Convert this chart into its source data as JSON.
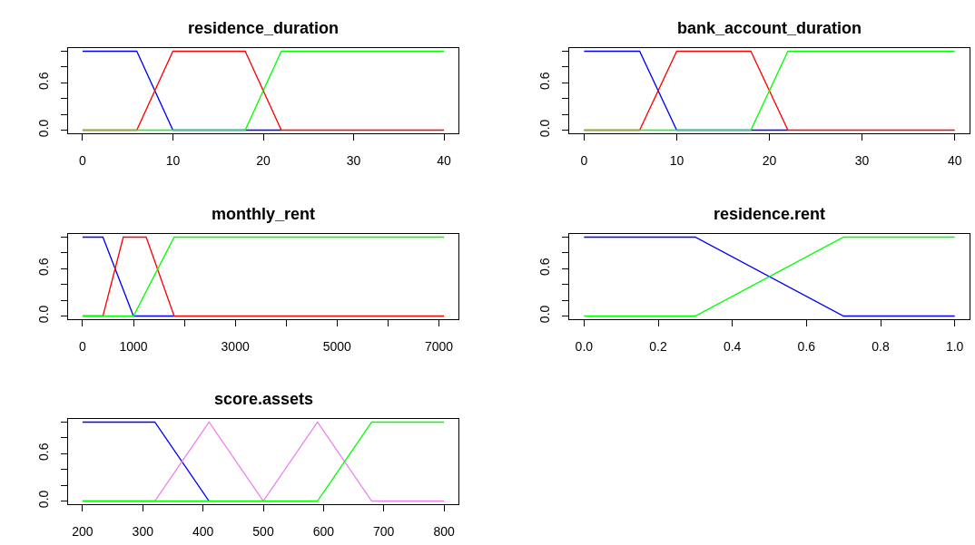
{
  "chart_data": [
    {
      "type": "line",
      "title": "residence_duration",
      "xlim": [
        -1.6,
        41.6
      ],
      "xticks": [
        0,
        10,
        20,
        30,
        40
      ],
      "ylim": [
        -0.04,
        1.04
      ],
      "yticks": [
        {
          "value": 0,
          "label": "0.0"
        },
        {
          "value": 0.2,
          "label": null
        },
        {
          "value": 0.4,
          "label": null
        },
        {
          "value": 0.6,
          "label": "0.6"
        },
        {
          "value": 0.8,
          "label": null
        },
        {
          "value": 1,
          "label": null
        }
      ],
      "series": [
        {
          "color": "#0000ff",
          "x": [
            0,
            6,
            10,
            22
          ],
          "values": [
            1,
            1,
            0,
            0
          ]
        },
        {
          "color": "#ff0000",
          "x": [
            0,
            6,
            10,
            18,
            22,
            40
          ],
          "values": [
            0,
            0,
            1,
            1,
            0,
            0
          ]
        },
        {
          "color": "#00ff00",
          "x": [
            0,
            18,
            22,
            40
          ],
          "values": [
            0,
            0,
            1,
            1
          ]
        }
      ]
    },
    {
      "type": "line",
      "title": "bank_account_duration",
      "xlim": [
        -1.6,
        41.6
      ],
      "xticks": [
        0,
        10,
        20,
        30,
        40
      ],
      "ylim": [
        -0.04,
        1.04
      ],
      "yticks": [
        {
          "value": 0,
          "label": "0.0"
        },
        {
          "value": 0.2,
          "label": null
        },
        {
          "value": 0.4,
          "label": null
        },
        {
          "value": 0.6,
          "label": "0.6"
        },
        {
          "value": 0.8,
          "label": null
        },
        {
          "value": 1,
          "label": null
        }
      ],
      "series": [
        {
          "color": "#0000ff",
          "x": [
            0,
            6,
            10,
            22
          ],
          "values": [
            1,
            1,
            0,
            0
          ]
        },
        {
          "color": "#ff0000",
          "x": [
            0,
            6,
            10,
            18,
            22,
            40
          ],
          "values": [
            0,
            0,
            1,
            1,
            0,
            0
          ]
        },
        {
          "color": "#00ff00",
          "x": [
            0,
            18,
            22,
            40
          ],
          "values": [
            0,
            0,
            1,
            1
          ]
        }
      ]
    },
    {
      "type": "line",
      "title": "monthly_rent",
      "xlim": [
        -284,
        7384
      ],
      "xticks": [
        0,
        1000,
        {
          "value": 2000,
          "label": null
        },
        3000,
        {
          "value": 4000,
          "label": null
        },
        5000,
        {
          "value": 6000,
          "label": null
        },
        7000
      ],
      "ylim": [
        -0.04,
        1.04
      ],
      "yticks": [
        {
          "value": 0,
          "label": "0.0"
        },
        {
          "value": 0.2,
          "label": null
        },
        {
          "value": 0.4,
          "label": null
        },
        {
          "value": 0.6,
          "label": "0.6"
        },
        {
          "value": 0.8,
          "label": null
        },
        {
          "value": 1,
          "label": null
        }
      ],
      "series": [
        {
          "color": "#0000ff",
          "x": [
            0,
            400,
            1000,
            1800
          ],
          "values": [
            1,
            1,
            0,
            0
          ]
        },
        {
          "color": "#ff0000",
          "x": [
            0,
            400,
            800,
            1250,
            1800,
            7100
          ],
          "values": [
            0,
            0,
            1,
            1,
            0,
            0
          ]
        },
        {
          "color": "#00ff00",
          "x": [
            0,
            1000,
            1800,
            7100
          ],
          "values": [
            0,
            0,
            1,
            1
          ]
        }
      ]
    },
    {
      "type": "line",
      "title": "residence.rent",
      "xlim": [
        -0.04,
        1.04
      ],
      "xticks": [
        {
          "value": 0,
          "label": "0.0"
        },
        0.2,
        0.4,
        0.6,
        0.8,
        {
          "value": 1,
          "label": "1.0"
        }
      ],
      "ylim": [
        -0.04,
        1.04
      ],
      "yticks": [
        {
          "value": 0,
          "label": "0.0"
        },
        {
          "value": 0.2,
          "label": null
        },
        {
          "value": 0.4,
          "label": null
        },
        {
          "value": 0.6,
          "label": "0.6"
        },
        {
          "value": 0.8,
          "label": null
        },
        {
          "value": 1,
          "label": null
        }
      ],
      "series": [
        {
          "color": "#0000ff",
          "x": [
            0,
            0.3,
            0.7,
            1
          ],
          "values": [
            1,
            1,
            0,
            0
          ]
        },
        {
          "color": "#00ff00",
          "x": [
            0,
            0.3,
            0.7,
            1
          ],
          "values": [
            0,
            0,
            1,
            1
          ]
        }
      ]
    },
    {
      "type": "line",
      "title": "score.assets",
      "xlim": [
        176,
        824
      ],
      "xticks": [
        200,
        300,
        400,
        500,
        600,
        700,
        800
      ],
      "ylim": [
        -0.04,
        1.04
      ],
      "yticks": [
        {
          "value": 0,
          "label": "0.0"
        },
        {
          "value": 0.2,
          "label": null
        },
        {
          "value": 0.4,
          "label": null
        },
        {
          "value": 0.6,
          "label": "0.6"
        },
        {
          "value": 0.8,
          "label": null
        },
        {
          "value": 1,
          "label": null
        }
      ],
      "series": [
        {
          "color": "#0000ff",
          "x": [
            200,
            320,
            410
          ],
          "values": [
            1,
            1,
            0
          ]
        },
        {
          "color": "#ee82ee",
          "x": [
            200,
            320,
            410,
            500,
            590,
            680,
            800
          ],
          "values": [
            0,
            0,
            1,
            0,
            1,
            0,
            0
          ]
        },
        {
          "color": "#00ff00",
          "x": [
            200,
            590,
            680,
            800
          ],
          "values": [
            0,
            0,
            1,
            1
          ]
        }
      ]
    }
  ]
}
